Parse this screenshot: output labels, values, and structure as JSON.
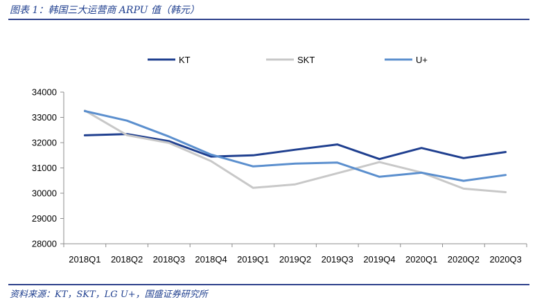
{
  "figure": {
    "title": "图表 1：韩国三大运营商 ARPU 值（韩元）",
    "source": "资料来源：KT，SKT，LG U+，国盛证券研究所"
  },
  "chart_data": {
    "type": "line",
    "title": "",
    "xlabel": "",
    "ylabel": "",
    "categories": [
      "2018Q1",
      "2018Q2",
      "2018Q3",
      "2018Q4",
      "2019Q1",
      "2019Q2",
      "2019Q3",
      "2019Q4",
      "2020Q1",
      "2020Q2",
      "2020Q3"
    ],
    "ylim": [
      28000,
      34000
    ],
    "yticks": [
      28000,
      29000,
      30000,
      31000,
      32000,
      33000,
      34000
    ],
    "grid": false,
    "legend_position": "top",
    "series": [
      {
        "name": "KT",
        "color": "#1f3f8f",
        "values": [
          32290,
          32340,
          32060,
          31450,
          31500,
          31720,
          31930,
          31350,
          31790,
          31390,
          31630
        ]
      },
      {
        "name": "SKT",
        "color": "#c8c8c8",
        "values": [
          33270,
          32300,
          31990,
          31270,
          30210,
          30350,
          30790,
          31230,
          30820,
          30180,
          30040
        ]
      },
      {
        "name": "U+",
        "color": "#5b8fce",
        "values": [
          33250,
          32870,
          32240,
          31530,
          31060,
          31170,
          31210,
          30650,
          30810,
          30490,
          30720
        ]
      }
    ]
  }
}
